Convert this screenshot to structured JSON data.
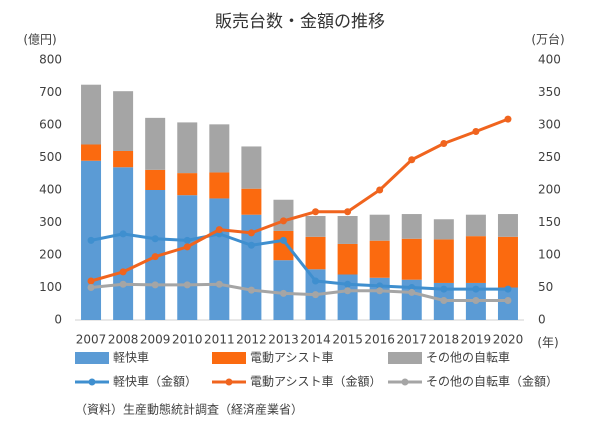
{
  "chart_data": {
    "type": "combo",
    "title": "販売台数・金額の推移",
    "y_label": "(億円)",
    "y2_label": "(万台)",
    "x_label": "(年)",
    "source": "（資料）生産動態統計調査（経済産業省）",
    "categories": [
      "2007",
      "2008",
      "2009",
      "2010",
      "2011",
      "2012",
      "2013",
      "2014",
      "2015",
      "2016",
      "2017",
      "2018",
      "2019",
      "2020"
    ],
    "ylim": [
      0,
      800
    ],
    "yticks": [
      0,
      100,
      200,
      300,
      400,
      500,
      600,
      700,
      800
    ],
    "y2lim": [
      0,
      400
    ],
    "y2ticks": [
      0,
      50,
      100,
      150,
      200,
      250,
      300,
      350,
      400
    ],
    "series": [
      {
        "name": "軽快車",
        "type": "bar",
        "axis": "y2",
        "color": "#5b9bd5",
        "values": [
          245,
          235,
          200,
          192,
          187,
          162,
          92,
          78,
          70,
          65,
          62,
          57,
          57,
          50
        ]
      },
      {
        "name": "電動アシスト車",
        "type": "bar",
        "axis": "y2",
        "color": "#fb6a0f",
        "values": [
          25,
          25,
          31,
          34,
          40,
          40,
          45,
          50,
          47,
          57,
          63,
          67,
          72,
          78
        ]
      },
      {
        "name": "その他の自転車",
        "type": "bar",
        "axis": "y2",
        "color": "#a5a5a5",
        "values": [
          92,
          92,
          80,
          78,
          74,
          65,
          48,
          32,
          43,
          40,
          38,
          31,
          33,
          35
        ]
      },
      {
        "name": "軽快車（金額）",
        "type": "line",
        "axis": "y",
        "color": "#3f8fcf",
        "values": [
          245,
          265,
          250,
          245,
          265,
          230,
          245,
          120,
          110,
          105,
          100,
          95,
          95,
          95
        ]
      },
      {
        "name": "電動アシスト車（金額）",
        "type": "line",
        "axis": "y",
        "color": "#f0641e",
        "values": [
          120,
          148,
          195,
          225,
          278,
          268,
          305,
          333,
          333,
          400,
          493,
          543,
          580,
          618
        ]
      },
      {
        "name": "その他の自転車（金額）",
        "type": "line",
        "axis": "y",
        "color": "#a5a5a5",
        "values": [
          100,
          110,
          108,
          108,
          110,
          92,
          82,
          78,
          90,
          90,
          85,
          60,
          60,
          60
        ]
      }
    ]
  }
}
